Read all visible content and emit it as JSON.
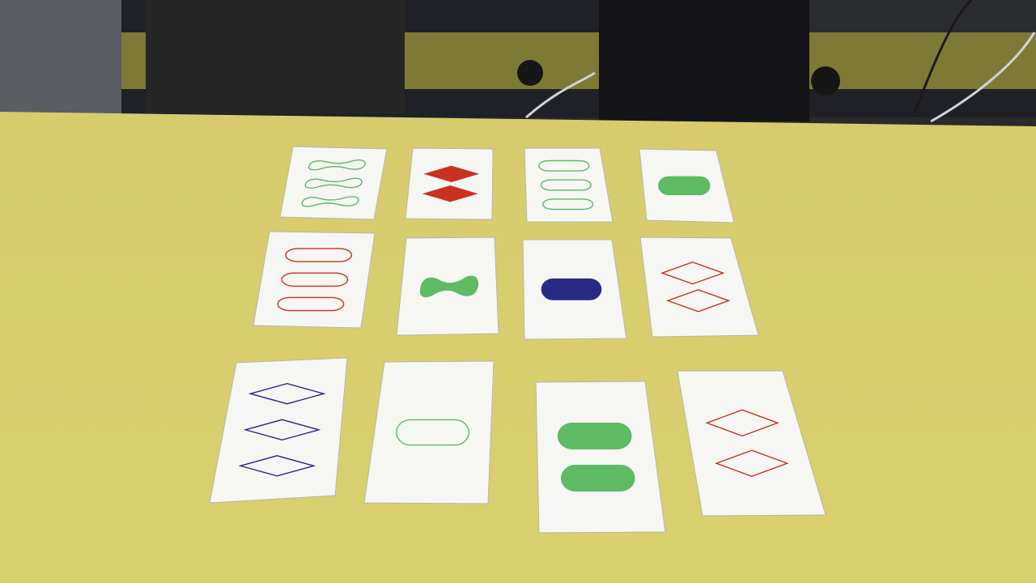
{
  "game": {
    "name": "Set",
    "table_color": "#d9cf72",
    "palette": {
      "red": "#c8321e",
      "green": "#5dbb63",
      "purple": "#2a2a86"
    },
    "cards": [
      {
        "row": 1,
        "col": 1,
        "count": 3,
        "shape": "squiggle",
        "color": "green",
        "shading": "open"
      },
      {
        "row": 1,
        "col": 2,
        "count": 2,
        "shape": "diamond",
        "color": "red",
        "shading": "solid"
      },
      {
        "row": 1,
        "col": 3,
        "count": 3,
        "shape": "oval",
        "color": "green",
        "shading": "striped"
      },
      {
        "row": 1,
        "col": 4,
        "count": 1,
        "shape": "oval",
        "color": "green",
        "shading": "solid"
      },
      {
        "row": 2,
        "col": 1,
        "count": 3,
        "shape": "oval",
        "color": "red",
        "shading": "open"
      },
      {
        "row": 2,
        "col": 2,
        "count": 1,
        "shape": "squiggle",
        "color": "green",
        "shading": "solid"
      },
      {
        "row": 2,
        "col": 3,
        "count": 1,
        "shape": "oval",
        "color": "purple",
        "shading": "solid"
      },
      {
        "row": 2,
        "col": 4,
        "count": 2,
        "shape": "diamond",
        "color": "red",
        "shading": "open"
      },
      {
        "row": 3,
        "col": 1,
        "count": 3,
        "shape": "diamond",
        "color": "purple",
        "shading": "open"
      },
      {
        "row": 3,
        "col": 2,
        "count": 1,
        "shape": "oval",
        "color": "green",
        "shading": "striped"
      },
      {
        "row": 3,
        "col": 3,
        "count": 2,
        "shape": "oval",
        "color": "green",
        "shading": "solid"
      },
      {
        "row": 3,
        "col": 4,
        "count": 2,
        "shape": "diamond",
        "color": "red",
        "shading": "striped"
      }
    ]
  }
}
